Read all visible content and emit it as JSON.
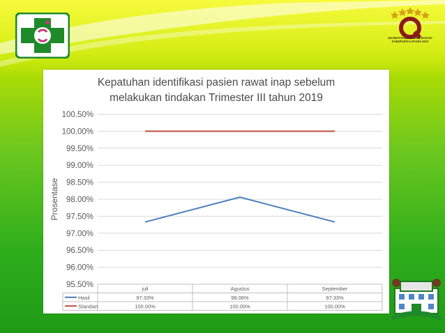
{
  "chart_data": {
    "type": "line",
    "title_line1": "Kepatuhan identifikasi pasien rawat inap sebelum",
    "title_line2": "melakukan tindakan Trimester III tahun 2019",
    "ylabel": "Prosentase",
    "xlabel": "",
    "categories": [
      "juli",
      "Agustus",
      "September"
    ],
    "ylim": [
      95.5,
      100.5
    ],
    "yticks": [
      95.5,
      96.0,
      96.5,
      97.0,
      97.5,
      98.0,
      98.5,
      99.0,
      99.5,
      100.0,
      100.5
    ],
    "ytick_labels": [
      "95.50%",
      "96.00%",
      "96.50%",
      "97.00%",
      "97.50%",
      "98.00%",
      "98.50%",
      "99.00%",
      "99.50%",
      "100.00%",
      "100.50%"
    ],
    "grid": true,
    "legend": "data-table-below",
    "series": [
      {
        "name": "Hasil",
        "values": [
          97.33,
          98.06,
          97.33
        ],
        "labels": [
          "97.33%",
          "98.06%",
          "97.33%"
        ],
        "color": "#4a7ebb"
      },
      {
        "name": "Standart",
        "values": [
          100.0,
          100.0,
          100.0
        ],
        "labels": [
          "100.00%",
          "100.00%",
          "100.00%"
        ],
        "color": "#be4b48"
      }
    ]
  },
  "colors": {
    "panel_background": "#ffffff",
    "gridline": "#d9d9d9",
    "text": "#595959",
    "title_text": "#4a4a4a",
    "logo_green": "#1f8a2a"
  },
  "logos": {
    "left": "hospital-cross-logo",
    "top_right": "accreditation-star-badge",
    "top_right_text": "KEMENTERIAN KESEHATAN PARIPURNA SNARS 2019",
    "bottom_right": "hospital-building-emblem"
  }
}
